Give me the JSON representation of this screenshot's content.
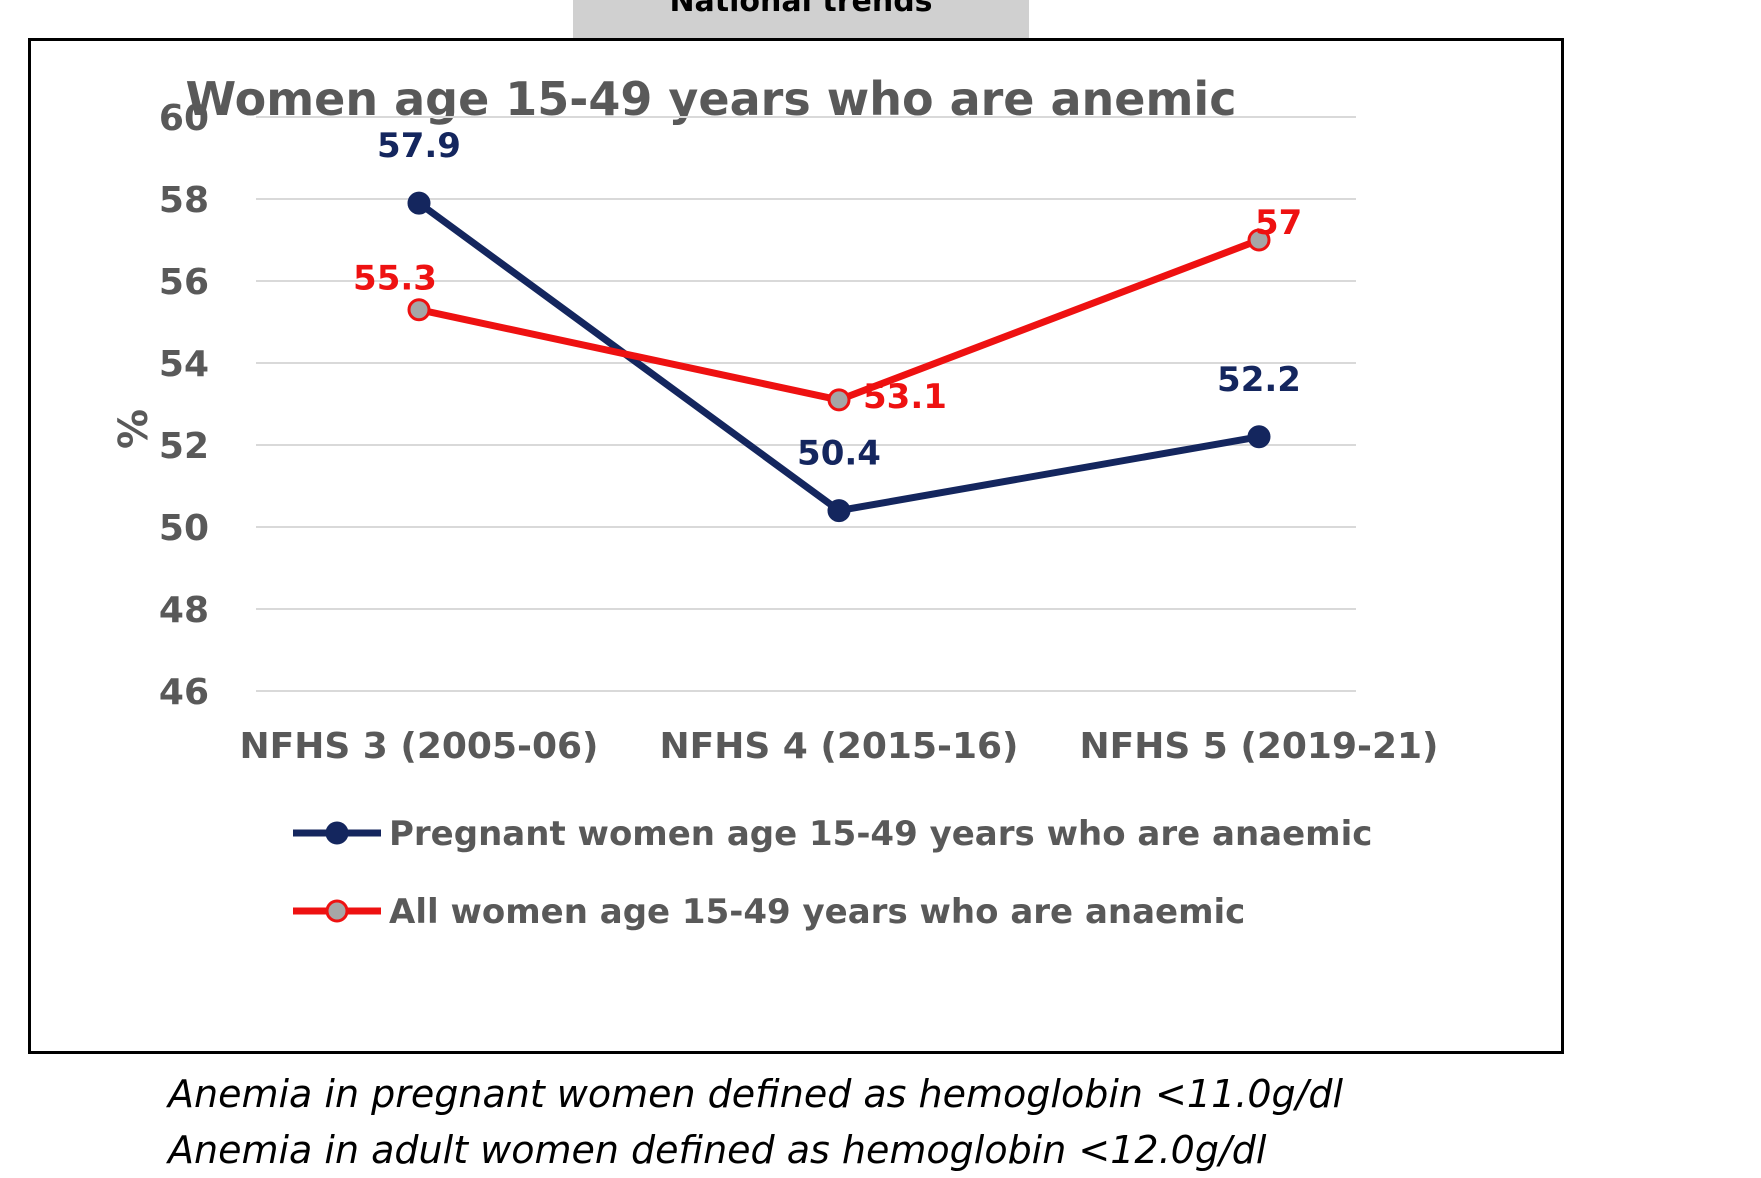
{
  "banner": {
    "title": "National trends"
  },
  "chart_data": {
    "type": "line",
    "title": "Women age 15-49 years who are anemic",
    "ylabel": "%",
    "xlabel": "",
    "categories": [
      "NFHS 3 (2005-06)",
      "NFHS 4 (2015-16)",
      "NFHS 5 (2019-21)"
    ],
    "ylim": [
      46,
      60
    ],
    "yticks": [
      46,
      48,
      50,
      52,
      54,
      56,
      58,
      60
    ],
    "grid": true,
    "legend_position": "bottom",
    "series": [
      {
        "name": "Pregnant women age 15-49 years who are anaemic",
        "values": [
          57.9,
          50.4,
          52.2
        ],
        "data_labels": [
          "57.9",
          "50.4",
          "52.2"
        ],
        "color": "#14265e",
        "marker_fill": "#14265e"
      },
      {
        "name": "All women age 15-49 years who are anaemic",
        "values": [
          55.3,
          53.1,
          57
        ],
        "data_labels": [
          "55.3",
          "53.1",
          "57"
        ],
        "color": "#ee1111",
        "marker_fill": "#a6a6a6"
      }
    ]
  },
  "notes": [
    "Anemia in pregnant women defined as hemoglobin <11.0g/dl",
    "Anemia in adult women defined as hemoglobin <12.0g/dl"
  ]
}
